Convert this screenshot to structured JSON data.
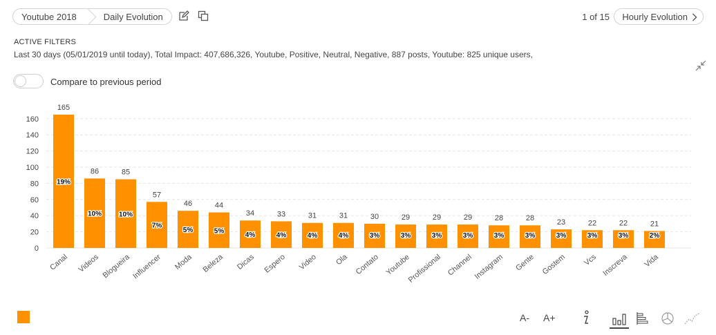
{
  "header": {
    "breadcrumbs": [
      "Youtube 2018",
      "Daily Evolution"
    ],
    "pager": "1 of 15",
    "view_button": "Hourly Evolution"
  },
  "filters": {
    "title": "ACTIVE FILTERS",
    "text": "Last 30 days (05/01/2019 until today), Total Impact: 407,686,326, Youtube, Positive, Neutral, Negative, 887 posts, Youtube: 825 unique users,"
  },
  "compare": {
    "label": "Compare to previous period",
    "enabled": false
  },
  "controls": {
    "font_decrease": "A-",
    "font_increase": "A+"
  },
  "icons": {
    "edit": "edit-icon",
    "copy": "copy-icon",
    "chevron": "chevron-right-icon",
    "expand": "collapse-arrows-icon",
    "info": "info-icon",
    "bar": "bar-chart-icon",
    "hbar": "horizontal-bar-icon",
    "pie": "pie-chart-icon",
    "line": "line-chart-icon"
  },
  "colors": {
    "bar": "#FF9100",
    "grid": "#e6e6e6",
    "text": "#333333"
  },
  "chart_data": {
    "type": "bar",
    "categories": [
      "Canal",
      "Videos",
      "Blogueira",
      "Influencer",
      "Moda",
      "Beleza",
      "Dicas",
      "Espero",
      "Video",
      "Ola",
      "Contato",
      "Youtube",
      "Profissional",
      "Channel",
      "Instagram",
      "Gente",
      "Gostem",
      "Vcs",
      "Inscreva",
      "Vida"
    ],
    "values": [
      165,
      86,
      85,
      57,
      46,
      44,
      34,
      33,
      31,
      31,
      30,
      29,
      29,
      29,
      28,
      28,
      23,
      22,
      22,
      21
    ],
    "percent_labels": [
      "19%",
      "10%",
      "10%",
      "7%",
      "5%",
      "5%",
      "4%",
      "4%",
      "4%",
      "4%",
      "3%",
      "3%",
      "3%",
      "3%",
      "3%",
      "3%",
      "3%",
      "3%",
      "3%",
      "2%"
    ],
    "yticks": [
      0,
      20,
      40,
      60,
      80,
      100,
      120,
      140,
      160
    ],
    "ylim": [
      0,
      170
    ],
    "grid": true
  }
}
